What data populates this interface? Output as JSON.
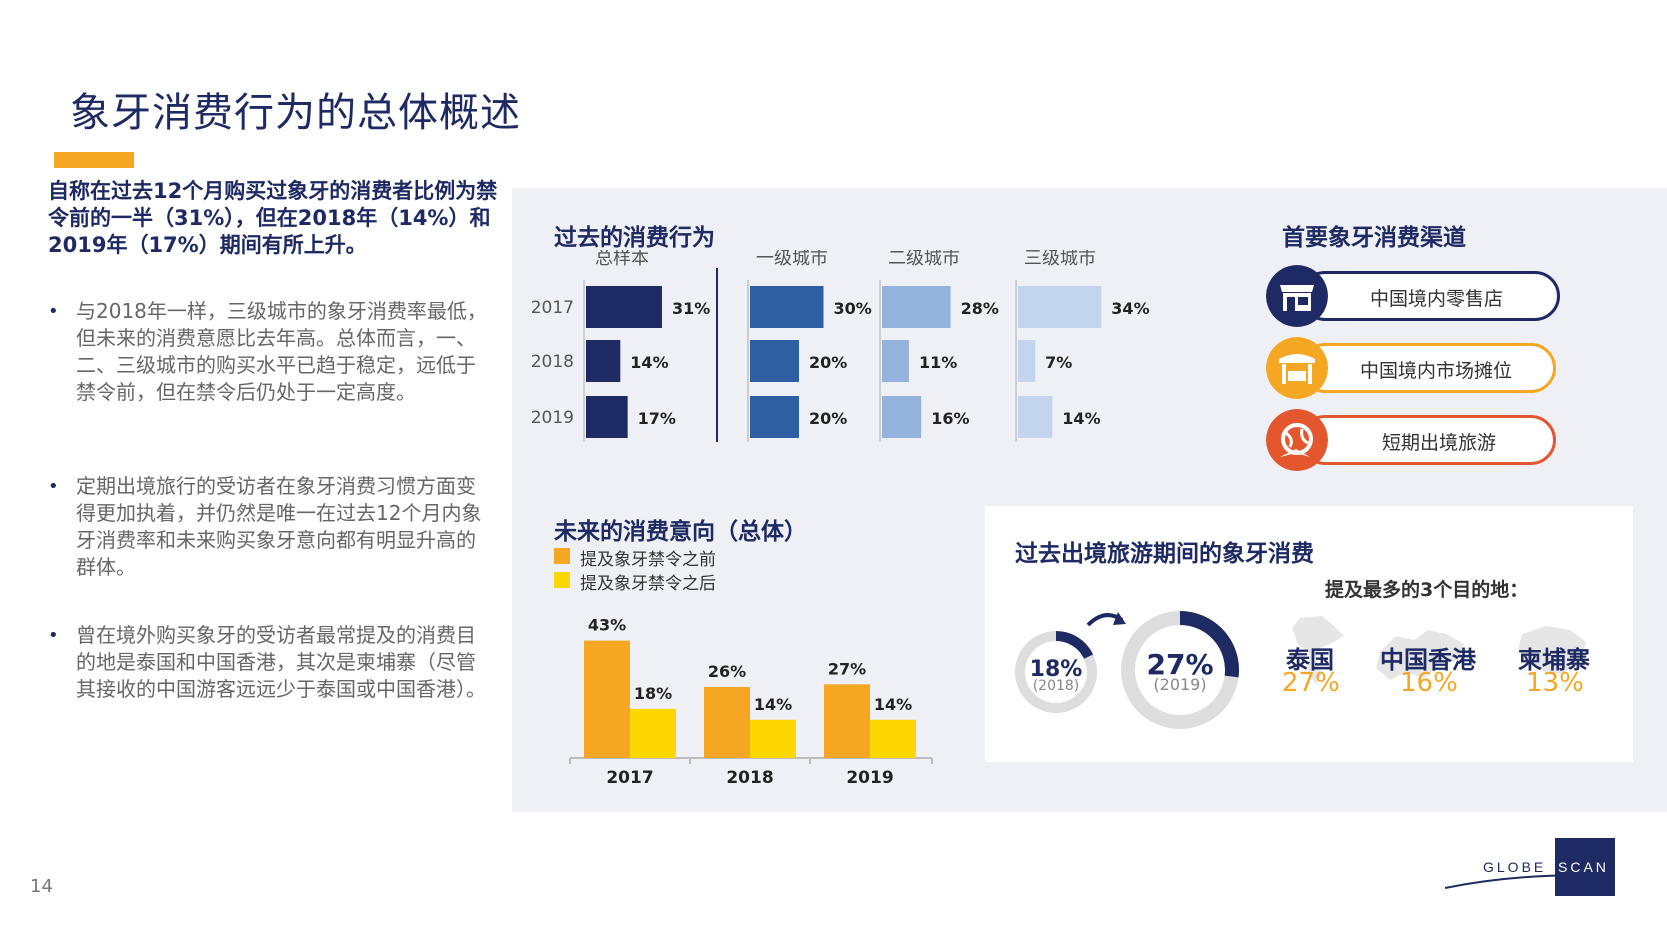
{
  "title": "象牙消费行为的总体概述",
  "intro": "自称在过去12个月购买过象牙的消费者比例为禁令前的一半（31%），但在2018年（14%）和2019年（17%）期间有所上升。",
  "bullets": [
    "与2018年一样，三级城市的象牙消费率最低，但未来的消费意愿比去年高。总体而言，一、二、三级城市的购买水平已趋于稳定，远低于禁令前，但在禁令后仍处于一定高度。",
    "定期出境旅行的受访者在象牙消费习惯方面变得更加执着，并仍然是唯一在过去12个月内象牙消费率和未来购买象牙意向都有明显升高的群体。",
    "曾在境外购买象牙的受访者最常提及的消费目的地是泰国和中国香港，其次是柬埔寨（尽管其接收的中国游客远远少于泰国或中国香港）。"
  ],
  "page_number": "14",
  "logo_text": "GLOBESCAN",
  "colors": {
    "navy": "#1d2a64",
    "orange": "#f5a623",
    "yellow": "#ffd700",
    "tier1": "#2e5fa3",
    "tier2": "#93b3dd",
    "tier3": "#c3d5ee"
  },
  "past": {
    "title": "过去的消费行为",
    "years": [
      "2017",
      "2018",
      "2019"
    ]
  },
  "channels": {
    "title": "首要象牙消费渠道",
    "items": [
      {
        "label": "中国境内零售店",
        "color": "#1d2a64",
        "icon": "store-icon"
      },
      {
        "label": "中国境内市场摊位",
        "color": "#f5a623",
        "icon": "market-stall-icon"
      },
      {
        "label": "短期出境旅游",
        "color": "#e4572e",
        "icon": "globe-plane-icon"
      }
    ]
  },
  "future": {
    "title": "未来的消费意向（总体）",
    "legend_before": "提及象牙禁令之前",
    "legend_after": "提及象牙禁令之后"
  },
  "travel": {
    "title": "过去出境旅游期间的象牙消费",
    "subtitle": "提及最多的3个目的地：",
    "donut_2018_value": "18%",
    "donut_2018_year": "(2018)",
    "donut_2019_value": "27%",
    "donut_2019_year": "(2019)",
    "donut_2018_fraction": 0.18,
    "donut_2019_fraction": 0.27,
    "destinations": [
      {
        "name": "泰国",
        "value": "27%"
      },
      {
        "name": "中国香港",
        "value": "16%"
      },
      {
        "name": "柬埔寨",
        "value": "13%"
      }
    ]
  },
  "chart_data": [
    {
      "type": "bar",
      "orientation": "horizontal",
      "groups": [
        "总样本",
        "一级城市",
        "二级城市",
        "三级城市"
      ],
      "categories": [
        "2017",
        "2018",
        "2019"
      ],
      "series": [
        {
          "name": "总样本",
          "values": [
            31,
            14,
            17
          ],
          "labels": [
            "31%",
            "14%",
            "17%"
          ],
          "color": "#1d2a64"
        },
        {
          "name": "一级城市",
          "values": [
            30,
            20,
            20
          ],
          "labels": [
            "30%",
            "20%",
            "20%"
          ],
          "color": "#2e5fa3"
        },
        {
          "name": "二级城市",
          "values": [
            28,
            11,
            16
          ],
          "labels": [
            "28%",
            "11%",
            "16%"
          ],
          "color": "#93b3dd"
        },
        {
          "name": "三级城市",
          "values": [
            34,
            7,
            14
          ],
          "labels": [
            "34%",
            "7%",
            "14%"
          ],
          "color": "#c3d5ee"
        }
      ],
      "title": "过去的消费行为"
    },
    {
      "type": "bar",
      "categories": [
        "2017",
        "2018",
        "2019"
      ],
      "series": [
        {
          "name": "提及象牙禁令之前",
          "values": [
            43,
            26,
            27
          ],
          "labels": [
            "43%",
            "26%",
            "27%"
          ],
          "color": "#f5a623"
        },
        {
          "name": "提及象牙禁令之后",
          "values": [
            18,
            14,
            14
          ],
          "labels": [
            "18%",
            "14%",
            "14%"
          ],
          "color": "#ffd700"
        }
      ],
      "title": "未来的消费意向（总体）",
      "legend": "top-left"
    }
  ]
}
